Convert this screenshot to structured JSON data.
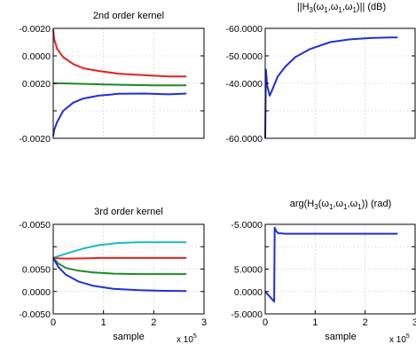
{
  "chart_data": [
    {
      "id": "p1",
      "type": "line",
      "title": "2nd order kernel",
      "xlabel": "",
      "xlim": [
        0,
        300000
      ],
      "xticks": [],
      "xtick_labels": [],
      "x_multiplier": "",
      "ylim": [
        0,
        4
      ],
      "yticks": [
        0,
        1,
        2,
        3,
        4
      ],
      "ytick_labels": [
        "-0.0020",
        "",
        "0.0020",
        "0.0000",
        "-0.0020"
      ],
      "series": [
        {
          "color": "#e8211c",
          "x": [
            0,
            2000,
            8000,
            20000,
            40000,
            60000,
            90000,
            130000,
            180000,
            230000,
            265000
          ],
          "y": [
            3.95,
            3.6,
            3.25,
            2.95,
            2.7,
            2.55,
            2.45,
            2.35,
            2.3,
            2.25,
            2.25
          ]
        },
        {
          "color": "#1f8a24",
          "x": [
            0,
            20000,
            60000,
            130000,
            200000,
            265000
          ],
          "y": [
            2.0,
            2.0,
            1.98,
            1.95,
            1.93,
            1.93
          ]
        },
        {
          "color": "#1e2ee0",
          "x": [
            0,
            2000,
            8000,
            20000,
            40000,
            60000,
            90000,
            130000,
            180000,
            230000,
            265000
          ],
          "y": [
            0.08,
            0.3,
            0.6,
            1.0,
            1.3,
            1.45,
            1.55,
            1.62,
            1.63,
            1.6,
            1.63
          ]
        }
      ]
    },
    {
      "id": "p2",
      "type": "line",
      "title": "||H3(ω1,ω1,ω1)|| (dB)",
      "title_parts": {
        "a": "||H",
        "b": "3",
        "c": "(ω",
        "d": "1",
        "e": ",ω",
        "f": "1",
        "g": ",ω",
        "h": "1",
        "i": ")|| (dB)"
      },
      "xlabel": "",
      "xlim": [
        0,
        300000
      ],
      "xticks": [],
      "xtick_labels": [],
      "x_multiplier": "",
      "ylim": [
        0,
        4
      ],
      "yticks": [
        0,
        1,
        2,
        3,
        4
      ],
      "ytick_labels": [
        "-60.0000",
        "",
        "-40.0000",
        "-50.0000",
        "-60.0000"
      ],
      "series": [
        {
          "color": "#1e2ee0",
          "x": [
            0,
            1500,
            4000,
            9000,
            15000,
            25000,
            40000,
            60000,
            90000,
            130000,
            170000,
            210000,
            250000,
            265000
          ],
          "y": [
            0.0,
            2.5,
            1.9,
            1.55,
            1.8,
            2.25,
            2.6,
            2.95,
            3.25,
            3.5,
            3.6,
            3.65,
            3.67,
            3.67
          ]
        }
      ]
    },
    {
      "id": "p3",
      "type": "line",
      "title": "3rd order kernel",
      "xlabel": "sample",
      "xlim": [
        0,
        300000
      ],
      "xticks": [
        0,
        100000,
        200000,
        300000
      ],
      "xtick_labels": [
        "0",
        "1",
        "2",
        "3"
      ],
      "x_multiplier": "x 10",
      "x_multiplier_exp": "5",
      "ylim": [
        0,
        4
      ],
      "yticks": [
        0,
        1,
        2,
        3,
        4
      ],
      "ytick_labels": [
        "-0.0050",
        "0.0000",
        "0.0050",
        "",
        "-0.0050"
      ],
      "series": [
        {
          "color": "#19b9c4",
          "x": [
            0,
            10000,
            30000,
            60000,
            90000,
            130000,
            170000,
            210000,
            265000
          ],
          "y": [
            2.5,
            2.58,
            2.72,
            2.92,
            3.07,
            3.17,
            3.2,
            3.2,
            3.2
          ]
        },
        {
          "color": "#e8211c",
          "x": [
            0,
            10000,
            30000,
            60000,
            100000,
            150000,
            200000,
            265000
          ],
          "y": [
            2.5,
            2.48,
            2.47,
            2.48,
            2.5,
            2.5,
            2.5,
            2.5
          ]
        },
        {
          "color": "#1f8a24",
          "x": [
            0,
            10000,
            25000,
            50000,
            80000,
            120000,
            170000,
            220000,
            265000
          ],
          "y": [
            2.5,
            2.25,
            2.05,
            1.93,
            1.85,
            1.8,
            1.78,
            1.78,
            1.78
          ]
        },
        {
          "color": "#1e2ee0",
          "x": [
            0,
            10000,
            25000,
            50000,
            80000,
            120000,
            170000,
            220000,
            265000
          ],
          "y": [
            2.5,
            2.1,
            1.75,
            1.45,
            1.25,
            1.12,
            1.06,
            1.03,
            1.02
          ]
        }
      ]
    },
    {
      "id": "p4",
      "type": "line",
      "title": "arg(H3(ω1,ω1,ω1)) (rad)",
      "title_parts": {
        "a": "arg(H",
        "b": "3",
        "c": "(ω",
        "d": "1",
        "e": ",ω",
        "f": "1",
        "g": ",ω",
        "h": "1",
        "i": ")) (rad)"
      },
      "xlabel": "sample",
      "xlim": [
        0,
        300000
      ],
      "xticks": [
        0,
        100000,
        200000,
        300000
      ],
      "xtick_labels": [
        "0",
        "1",
        "2",
        "3"
      ],
      "x_multiplier": "x 10",
      "x_multiplier_exp": "5",
      "ylim": [
        0,
        4
      ],
      "yticks": [
        0,
        1,
        2,
        3,
        4
      ],
      "ytick_labels": [
        "-5.0000",
        "0.0000",
        "5.0000",
        "",
        "-5.0000"
      ],
      "series": [
        {
          "color": "#1e2ee0",
          "x": [
            0,
            18000,
            19000,
            22000,
            26000,
            30000,
            40000,
            60000,
            100000,
            150000,
            200000,
            265000
          ],
          "y": [
            1.0,
            0.55,
            3.85,
            3.7,
            3.6,
            3.6,
            3.58,
            3.58,
            3.58,
            3.58,
            3.58,
            3.58
          ]
        }
      ]
    }
  ]
}
